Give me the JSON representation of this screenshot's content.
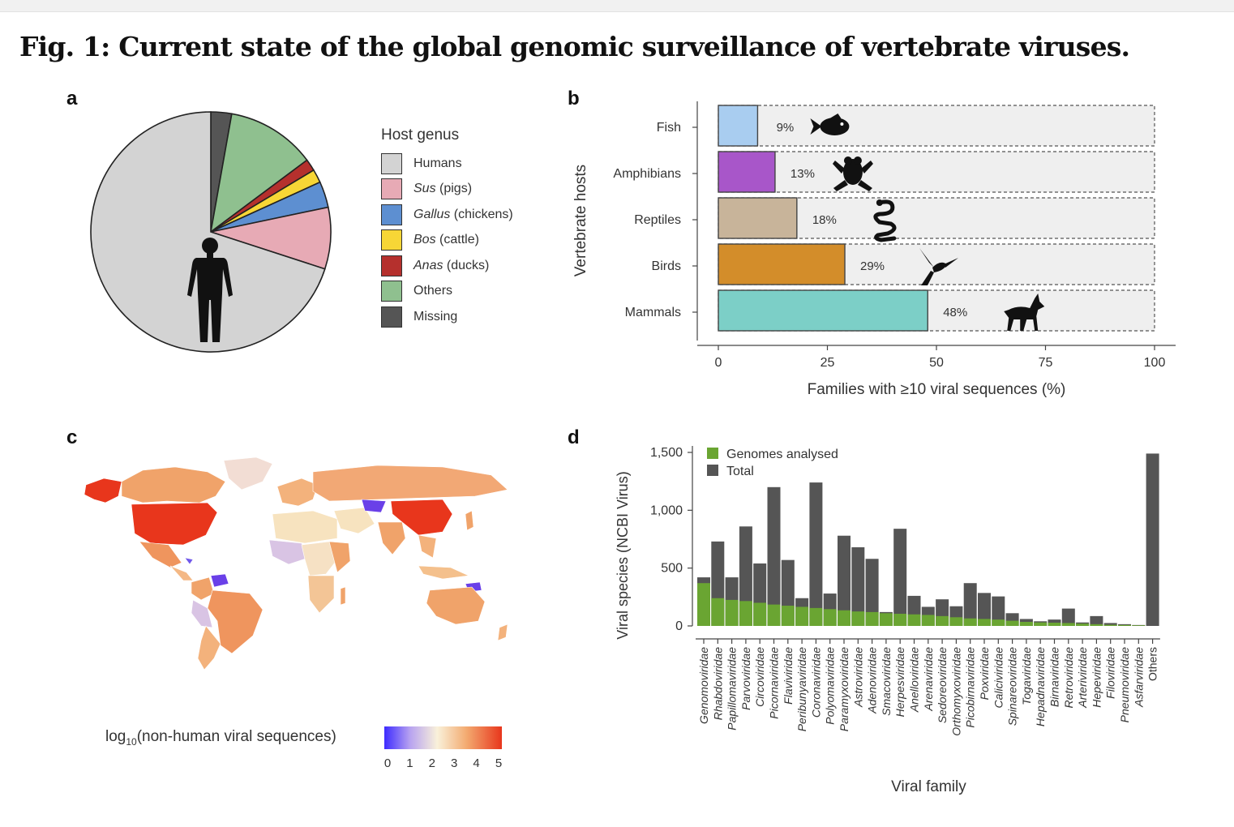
{
  "figure": {
    "title": "Fig. 1: Current state of the global genomic surveillance of vertebrate viruses.",
    "panel_labels": [
      "a",
      "b",
      "c",
      "d"
    ]
  },
  "panel_a": {
    "legend_title": "Host genus",
    "legend": [
      {
        "genus": "Humans",
        "common": "",
        "color": "#d3d3d3"
      },
      {
        "genus": "Sus",
        "common": "(pigs)",
        "color": "#e7aab5"
      },
      {
        "genus": "Gallus",
        "common": "(chickens)",
        "color": "#5d8fd1"
      },
      {
        "genus": "Bos",
        "common": "(cattle)",
        "color": "#f7d636"
      },
      {
        "genus": "Anas",
        "common": "(ducks)",
        "color": "#b5302d"
      },
      {
        "genus": "Others",
        "common": "",
        "color": "#8fc08f"
      },
      {
        "genus": "Missing",
        "common": "",
        "color": "#555555"
      }
    ],
    "icon": "human-silhouette-icon"
  },
  "panel_b": {
    "ylabel": "Vertebrate hosts",
    "xlabel": "Families with ≥10 viral sequences (%)",
    "xticks": [
      "0",
      "25",
      "50",
      "75",
      "100"
    ],
    "bar_labels": [
      "9%",
      "13%",
      "18%",
      "29%",
      "48%"
    ],
    "icons": [
      "fish-icon",
      "frog-icon",
      "snake-icon",
      "hummingbird-icon",
      "wolf-icon"
    ]
  },
  "panel_c": {
    "legend_label": "log",
    "legend_label_sub": "10",
    "legend_label_rest": "(non-human viral sequences)",
    "legend_ticks": [
      "0",
      "1",
      "2",
      "3",
      "4",
      "5"
    ],
    "colors": {
      "low": "#4a32e8",
      "mid": "#f7ecd0",
      "high": "#e84a2a"
    }
  },
  "panel_d": {
    "ylabel": "Viral species (NCBI Virus)",
    "xlabel": "Viral family",
    "yticks": [
      "0",
      "500",
      "1,000",
      "1,500"
    ],
    "legend": [
      {
        "name": "Genomes analysed",
        "color": "#6aa532"
      },
      {
        "name": "Total",
        "color": "#555555"
      }
    ]
  },
  "chart_data": [
    {
      "type": "pie",
      "panel": "a",
      "labels": [
        "Humans",
        "Sus (pigs)",
        "Gallus (chickens)",
        "Bos (cattle)",
        "Anas (ducks)",
        "Others",
        "Missing"
      ],
      "values": [
        70.0,
        8.3,
        3.5,
        1.8,
        1.6,
        12.0,
        2.8
      ]
    },
    {
      "type": "bar",
      "panel": "b",
      "orientation": "horizontal",
      "categories": [
        "Fish",
        "Amphibians",
        "Reptiles",
        "Birds",
        "Mammals"
      ],
      "values": [
        9,
        13,
        18,
        29,
        48
      ],
      "colors": [
        "#a9cdf0",
        "#a856c9",
        "#c8b49a",
        "#d38d2a",
        "#7ccfc7"
      ],
      "xlim": [
        0,
        100
      ]
    },
    {
      "type": "heatmap",
      "panel": "c",
      "description": "choropleth",
      "colorbar_range": [
        0,
        5
      ]
    },
    {
      "type": "bar",
      "panel": "d",
      "categories": [
        "Genomoviridae",
        "Rhabdoviridae",
        "Papillomaviridae",
        "Parvoviridae",
        "Circoviridae",
        "Picornaviridae",
        "Flaviviridae",
        "Peribunyaviridae",
        "Coronaviridae",
        "Polyomaviridae",
        "Paramyxoviridae",
        "Astroviridae",
        "Adenoviridae",
        "Smacoviridae",
        "Herpesviridae",
        "Anelloviridae",
        "Arenaviridae",
        "Sedoreoviridae",
        "Orthomyxoviridae",
        "Picobirnaviridae",
        "Poxviridae",
        "Caliciviridae",
        "Spinareoviridae",
        "Togaviridae",
        "Hepadnaviridae",
        "Birnaviridae",
        "Retroviridae",
        "Arteriviridae",
        "Hepeviridae",
        "Filoviridae",
        "Pneumoviridae",
        "Asfarviridae",
        "Others"
      ],
      "series": [
        {
          "name": "Genomes analysed",
          "values": [
            370,
            240,
            225,
            215,
            200,
            185,
            175,
            165,
            155,
            145,
            135,
            125,
            120,
            110,
            105,
            100,
            95,
            85,
            75,
            65,
            60,
            55,
            45,
            35,
            30,
            28,
            25,
            20,
            15,
            10,
            8,
            5,
            0
          ]
        },
        {
          "name": "Total",
          "values": [
            420,
            730,
            420,
            860,
            540,
            1200,
            570,
            240,
            1240,
            280,
            780,
            680,
            580,
            120,
            840,
            260,
            165,
            230,
            170,
            370,
            285,
            255,
            110,
            60,
            40,
            55,
            150,
            30,
            85,
            25,
            15,
            8,
            1490
          ]
        }
      ],
      "ylim": [
        0,
        1500
      ]
    }
  ]
}
